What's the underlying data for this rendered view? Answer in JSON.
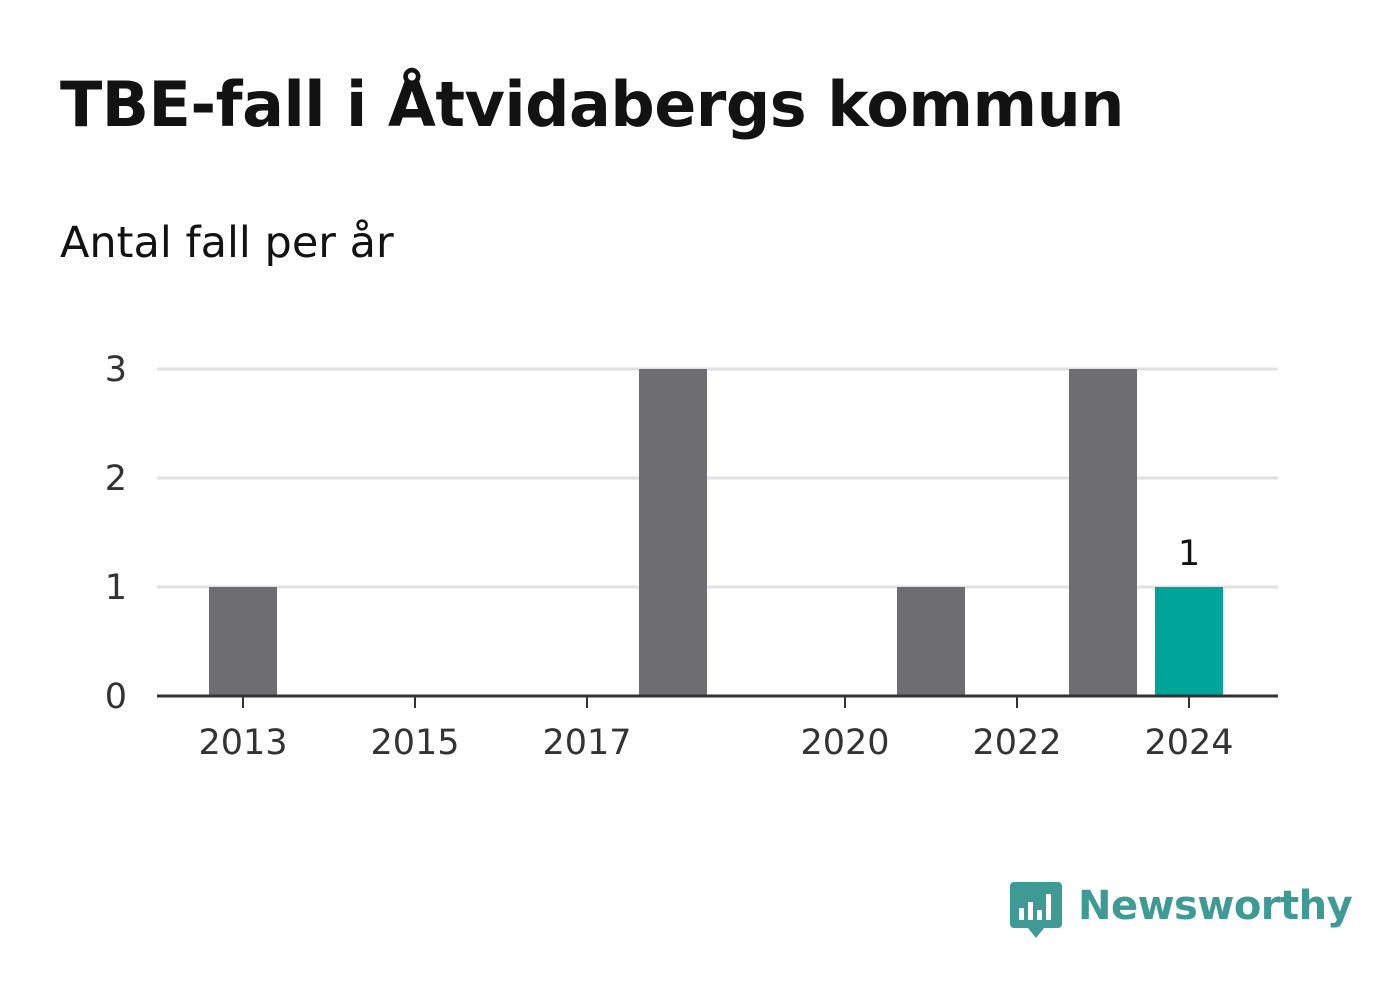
{
  "colors": {
    "bar": "#6e6d72",
    "highlight": "#00a499",
    "grid": "#e1e1e1",
    "axis": "#333333",
    "brand": "#3e9a94"
  },
  "brand": {
    "name": "Newsworthy",
    "icon": "bar-chart-speech-bubble-icon"
  },
  "chart_data": {
    "type": "bar",
    "title": "TBE-fall i Åtvidabergs kommun",
    "subtitle": "Antal fall per år",
    "xlabel": "",
    "ylabel": "",
    "categories": [
      2013,
      2014,
      2015,
      2016,
      2017,
      2018,
      2019,
      2020,
      2021,
      2022,
      2023,
      2024
    ],
    "values": [
      1,
      0,
      0,
      0,
      0,
      3,
      0,
      0,
      1,
      0,
      3,
      1
    ],
    "highlight_category": 2024,
    "x_tick_labels": [
      "2013",
      "2015",
      "2017",
      "2020",
      "2022",
      "2024"
    ],
    "y_ticks": [
      0,
      1,
      2,
      3
    ],
    "ylim": [
      0,
      3
    ],
    "grid": true,
    "legend": "none",
    "data_labels": [
      {
        "category": 2024,
        "text": "1"
      }
    ]
  }
}
